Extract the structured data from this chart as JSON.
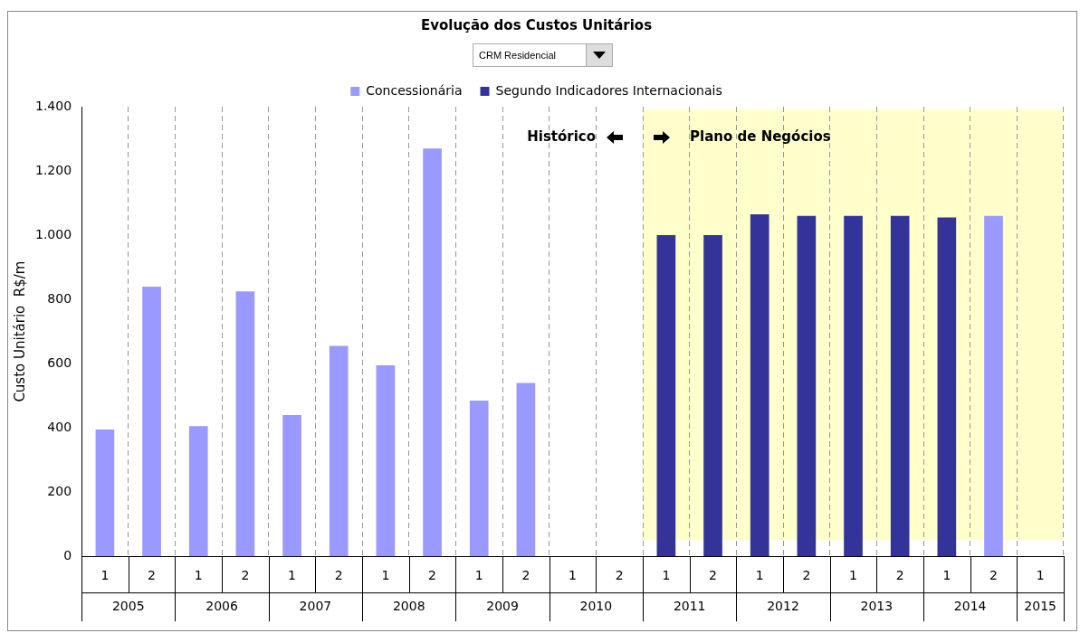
{
  "chart_data": {
    "type": "bar",
    "title": "Evolução dos Custos Unitários",
    "subtitle": "CRM Residencial",
    "ylabel": "Custo Unitário  R$/m",
    "categories": [
      "1",
      "2",
      "1",
      "2",
      "1",
      "2",
      "1",
      "2",
      "1",
      "2",
      "1",
      "2",
      "1",
      "2",
      "1",
      "2",
      "1",
      "2",
      "1",
      "2",
      "1"
    ],
    "series": [
      {
        "name": "Concessionária",
        "color": "#9999ff",
        "values": [
          395,
          840,
          405,
          825,
          440,
          655,
          595,
          1270,
          485,
          540,
          null,
          null,
          null,
          null,
          null,
          null,
          null,
          null,
          null,
          1060,
          null
        ]
      },
      {
        "name": "Segundo Indicadores Internacionais",
        "color": "#333399",
        "values": [
          null,
          null,
          null,
          null,
          null,
          null,
          null,
          null,
          null,
          null,
          null,
          null,
          1000,
          1000,
          1065,
          1060,
          1060,
          1060,
          1055,
          null,
          null
        ]
      }
    ],
    "stacked": true,
    "ylim": [
      0,
      1400
    ],
    "yticks": [
      0,
      {
        "value": 200,
        "label": "200"
      },
      {
        "value": 400,
        "label": "400"
      },
      {
        "value": 600,
        "label": "600"
      },
      {
        "value": 800,
        "label": "800"
      },
      {
        "value": 1000,
        "label": "1.000"
      },
      {
        "value": 1200,
        "label": "1.200"
      },
      {
        "value": 1400,
        "label": "1.400"
      }
    ],
    "annotations": [
      "Histórico",
      "Plano de Negócios",
      "2005",
      "2006",
      "2007",
      "2008",
      "2009",
      "2010",
      "2011",
      "2012",
      "2013",
      "2014",
      "2015"
    ],
    "grid": "x",
    "legend": "top"
  }
}
